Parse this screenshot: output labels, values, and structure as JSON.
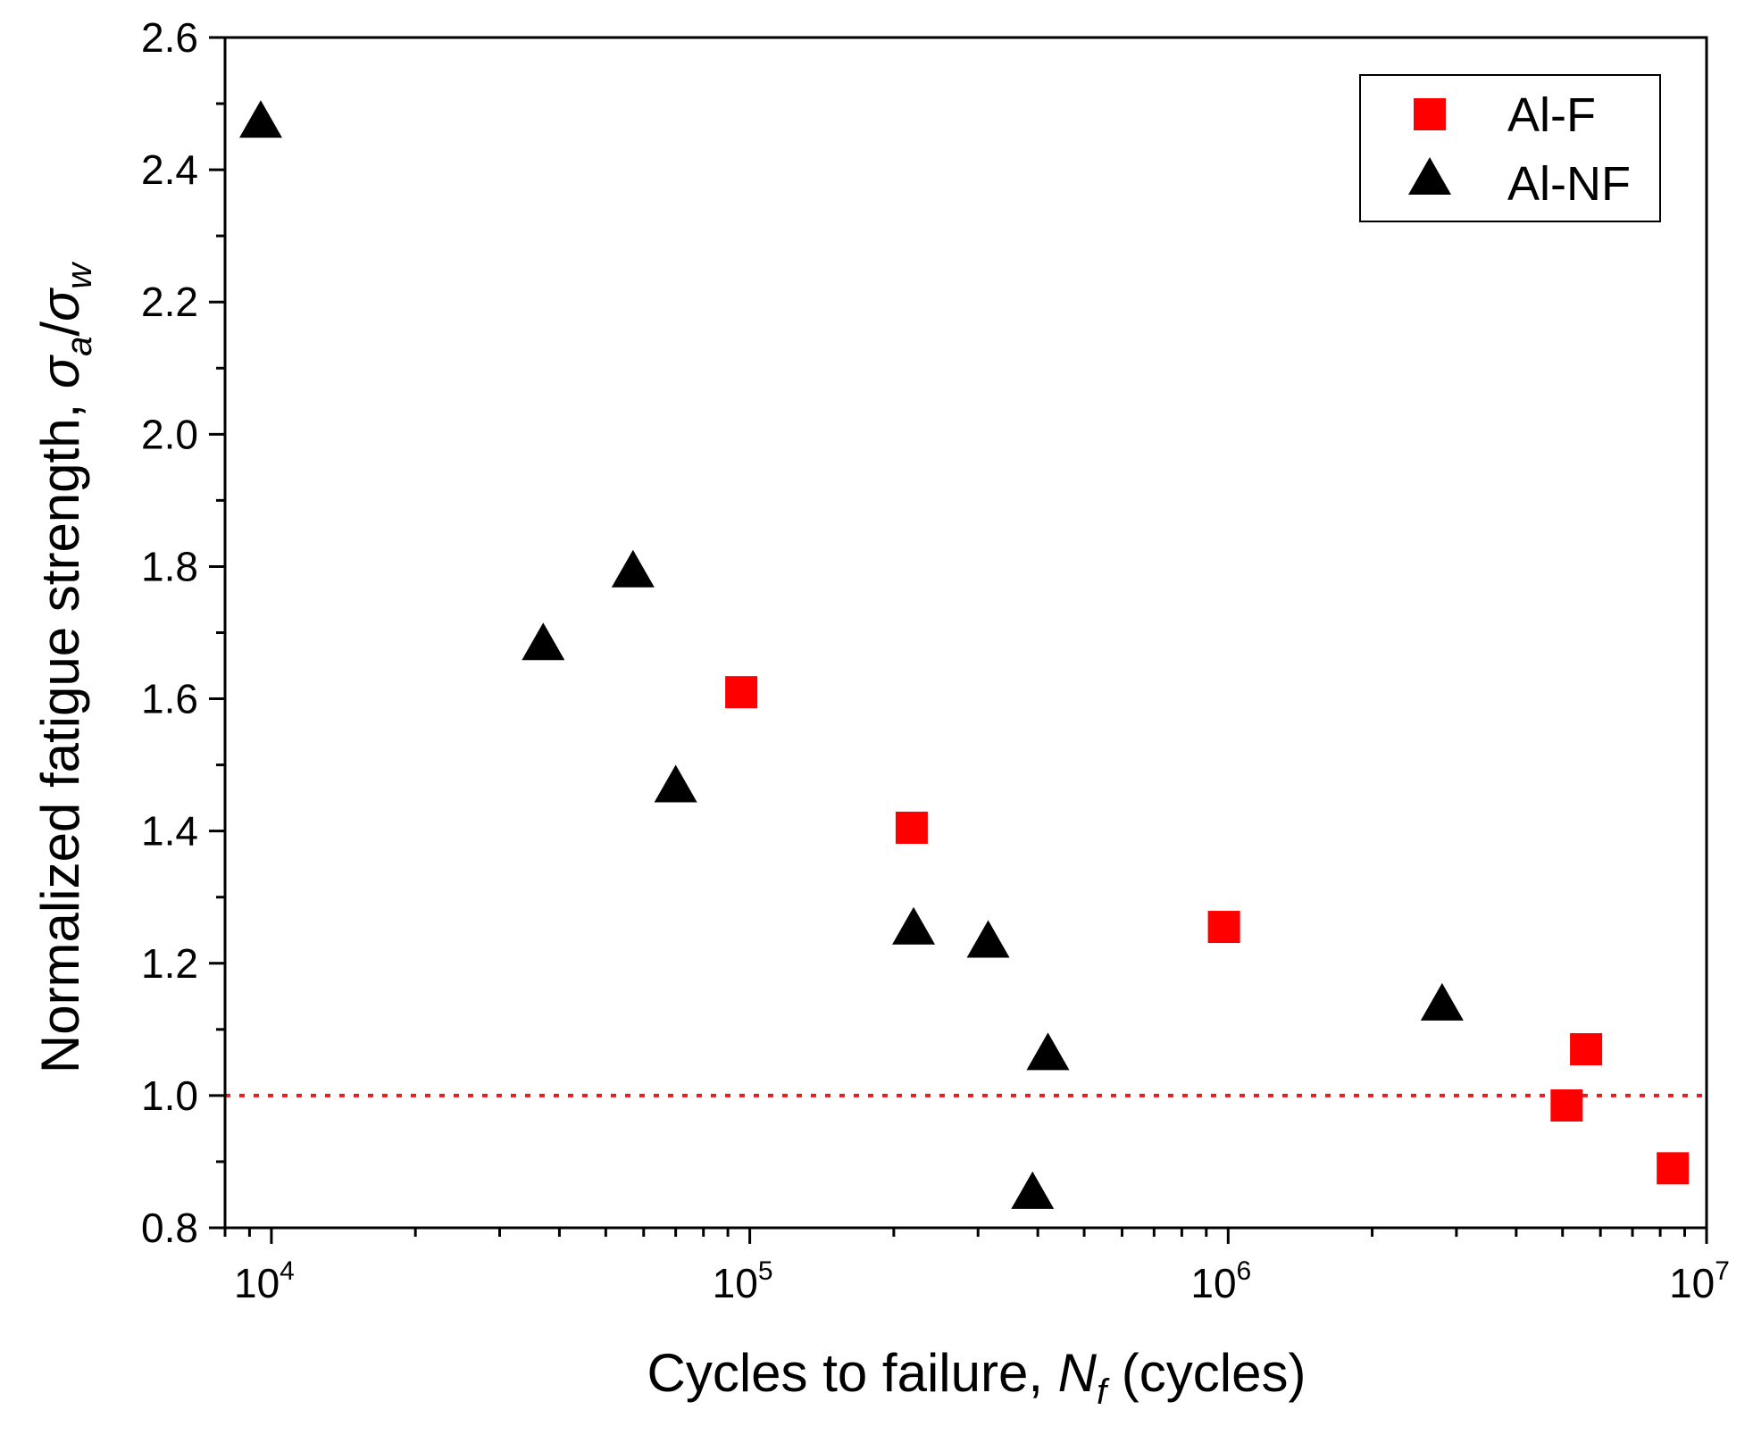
{
  "chart_data": {
    "type": "scatter",
    "title": "",
    "xscale": "log",
    "xlim": [
      8000,
      10000000
    ],
    "ylim": [
      0.8,
      2.6
    ],
    "x_ticks": [
      {
        "value": 10000,
        "base": "10",
        "exp": "4"
      },
      {
        "value": 100000,
        "base": "10",
        "exp": "5"
      },
      {
        "value": 1000000,
        "base": "10",
        "exp": "6"
      },
      {
        "value": 10000000,
        "base": "10",
        "exp": "7"
      }
    ],
    "y_ticks": [
      {
        "value": 0.8,
        "label": "0.8"
      },
      {
        "value": 1.0,
        "label": "1.0"
      },
      {
        "value": 1.2,
        "label": "1.2"
      },
      {
        "value": 1.4,
        "label": "1.4"
      },
      {
        "value": 1.6,
        "label": "1.6"
      },
      {
        "value": 1.8,
        "label": "1.8"
      },
      {
        "value": 2.0,
        "label": "2.0"
      },
      {
        "value": 2.2,
        "label": "2.2"
      },
      {
        "value": 2.4,
        "label": "2.4"
      },
      {
        "value": 2.6,
        "label": "2.6"
      }
    ],
    "xlabel": {
      "main": "Cycles to failure, ",
      "var": "N",
      "sub": "f",
      "unit": " (cycles)"
    },
    "ylabel": {
      "main": "Normalized fatigue strength, ",
      "num": "σ",
      "num_sub": "a",
      "sep": "/",
      "den": "σ",
      "den_sub": "w"
    },
    "reference_line": {
      "y": 1.0,
      "color": "#e02020",
      "style": "dotted"
    },
    "series": [
      {
        "name": "Al-F",
        "marker": "square",
        "color": "#ff0000",
        "points": [
          {
            "x": 96000,
            "y": 1.61
          },
          {
            "x": 218000,
            "y": 1.405
          },
          {
            "x": 980000,
            "y": 1.255
          },
          {
            "x": 5600000,
            "y": 1.07
          },
          {
            "x": 5100000,
            "y": 0.985
          },
          {
            "x": 8500000,
            "y": 0.89
          }
        ]
      },
      {
        "name": "Al-NF",
        "marker": "triangle",
        "color": "#000000",
        "points": [
          {
            "x": 9500,
            "y": 2.47
          },
          {
            "x": 37000,
            "y": 1.68
          },
          {
            "x": 57000,
            "y": 1.79
          },
          {
            "x": 70000,
            "y": 1.465
          },
          {
            "x": 220000,
            "y": 1.25
          },
          {
            "x": 315000,
            "y": 1.23
          },
          {
            "x": 420000,
            "y": 1.06
          },
          {
            "x": 390000,
            "y": 0.85
          },
          {
            "x": 2800000,
            "y": 1.135
          }
        ]
      }
    ],
    "legend": {
      "position": "top-right"
    }
  }
}
